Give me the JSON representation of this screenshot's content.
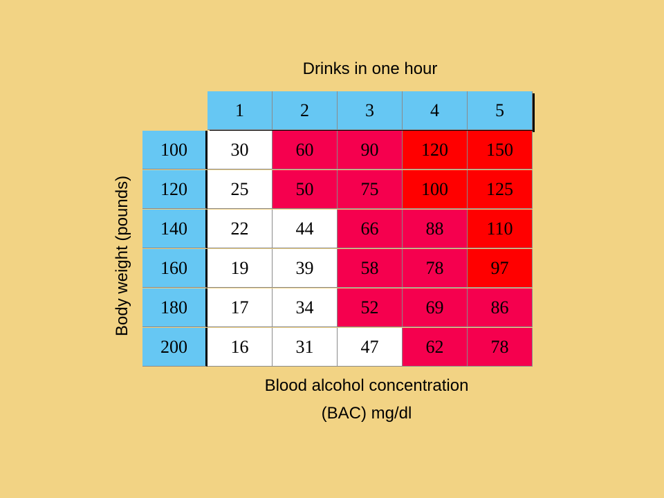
{
  "chart_data": {
    "type": "table",
    "title": "Drinks in one hour",
    "xlabel": "Blood alcohol concentration (BAC) mg/dl",
    "ylabel": "Body weight (pounds)",
    "caption_line1": "Blood alcohol concentration",
    "caption_line2": "(BAC) mg/dl",
    "columns": [
      "1",
      "2",
      "3",
      "4",
      "5"
    ],
    "rows": [
      {
        "weight": "100",
        "values": [
          "30",
          "60",
          "90",
          "120",
          "150"
        ],
        "levels": [
          "white",
          "pink",
          "pink",
          "red",
          "red"
        ]
      },
      {
        "weight": "120",
        "values": [
          "25",
          "50",
          "75",
          "100",
          "125"
        ],
        "levels": [
          "white",
          "pink",
          "pink",
          "red",
          "red"
        ]
      },
      {
        "weight": "140",
        "values": [
          "22",
          "44",
          "66",
          "88",
          "110"
        ],
        "levels": [
          "white",
          "white",
          "pink",
          "pink",
          "red"
        ]
      },
      {
        "weight": "160",
        "values": [
          "19",
          "39",
          "58",
          "78",
          "97"
        ],
        "levels": [
          "white",
          "white",
          "pink",
          "pink",
          "red"
        ]
      },
      {
        "weight": "180",
        "values": [
          "17",
          "34",
          "52",
          "69",
          "86"
        ],
        "levels": [
          "white",
          "white",
          "pink",
          "pink",
          "pink"
        ]
      },
      {
        "weight": "200",
        "values": [
          "16",
          "31",
          "47",
          "62",
          "78"
        ],
        "levels": [
          "white",
          "white",
          "white",
          "pink",
          "pink"
        ]
      }
    ]
  },
  "colors": {
    "background": "#F2D384",
    "header": "#66C7F3",
    "white": "#FFFFFF",
    "pink": "#F5004E",
    "red": "#FF0000"
  }
}
